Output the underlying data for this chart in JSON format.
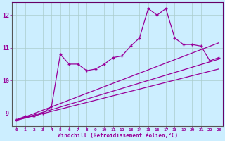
{
  "xlabel": "Windchill (Refroidissement éolien,°C)",
  "bg_color": "#cceeff",
  "line_color": "#990099",
  "grid_color": "#aacccc",
  "text_color": "#990099",
  "axis_color": "#660066",
  "xlim": [
    -0.5,
    23.5
  ],
  "ylim": [
    8.6,
    12.4
  ],
  "xticks": [
    0,
    1,
    2,
    3,
    4,
    5,
    6,
    7,
    8,
    9,
    10,
    11,
    12,
    13,
    14,
    15,
    16,
    17,
    18,
    19,
    20,
    21,
    22,
    23
  ],
  "yticks": [
    9,
    10,
    11,
    12
  ],
  "main_x": [
    0,
    1,
    2,
    3,
    4,
    5,
    6,
    7,
    8,
    9,
    10,
    11,
    12,
    13,
    14,
    15,
    16,
    17,
    18,
    19,
    20,
    21,
    22,
    23
  ],
  "main_y": [
    8.8,
    8.9,
    8.9,
    9.0,
    9.2,
    10.8,
    10.5,
    10.5,
    10.3,
    10.35,
    10.5,
    10.7,
    10.75,
    11.05,
    11.3,
    12.2,
    12.0,
    12.2,
    11.3,
    11.1,
    11.1,
    11.05,
    10.6,
    10.7
  ],
  "reg_lines": [
    {
      "x": [
        0,
        23
      ],
      "y": [
        8.78,
        11.15
      ]
    },
    {
      "x": [
        0,
        23
      ],
      "y": [
        8.78,
        10.65
      ]
    },
    {
      "x": [
        0,
        23
      ],
      "y": [
        8.78,
        10.35
      ]
    }
  ]
}
